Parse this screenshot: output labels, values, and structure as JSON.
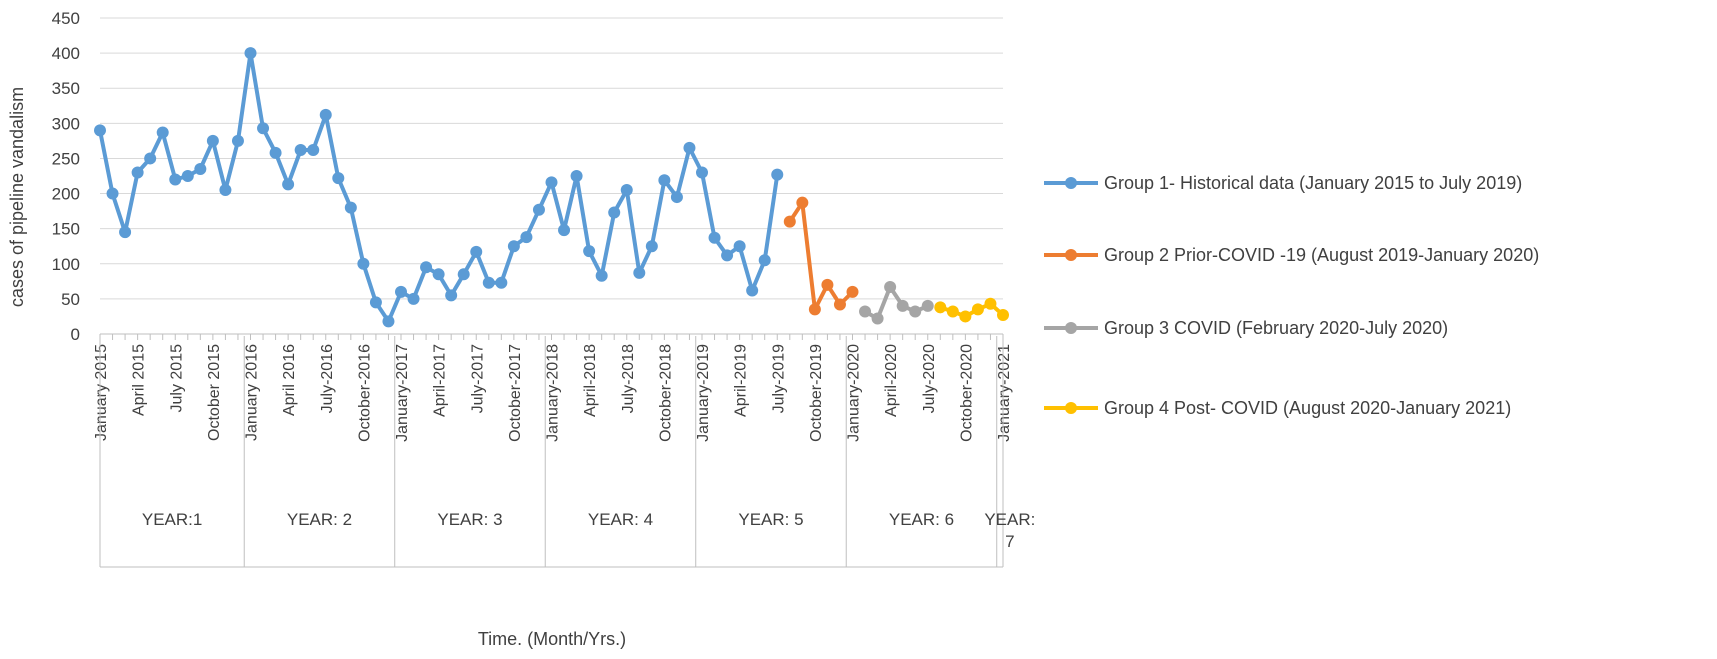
{
  "chart_data": {
    "type": "line",
    "title": "",
    "xlabel": "Time. (Month/Yrs.)",
    "ylabel": "cases of pipeline vandalism",
    "ylim": [
      0,
      450
    ],
    "yticks": [
      0,
      50,
      100,
      150,
      200,
      250,
      300,
      350,
      400,
      450
    ],
    "grid": true,
    "legend_position": "right",
    "month_count": 73,
    "x_tick_labels": [
      {
        "index": 0,
        "label": "January 2015"
      },
      {
        "index": 3,
        "label": "April 2015"
      },
      {
        "index": 6,
        "label": "July 2015"
      },
      {
        "index": 9,
        "label": "October 2015"
      },
      {
        "index": 12,
        "label": "January 2016"
      },
      {
        "index": 15,
        "label": "April 2016"
      },
      {
        "index": 18,
        "label": "July-2016"
      },
      {
        "index": 21,
        "label": "October-2016"
      },
      {
        "index": 24,
        "label": "January-2017"
      },
      {
        "index": 27,
        "label": "April-2017"
      },
      {
        "index": 30,
        "label": "July-2017"
      },
      {
        "index": 33,
        "label": "October-2017"
      },
      {
        "index": 36,
        "label": "January-2018"
      },
      {
        "index": 39,
        "label": "April-2018"
      },
      {
        "index": 42,
        "label": "July-2018"
      },
      {
        "index": 45,
        "label": "October-2018"
      },
      {
        "index": 48,
        "label": "January-2019"
      },
      {
        "index": 51,
        "label": "April-2019"
      },
      {
        "index": 54,
        "label": "July-2019"
      },
      {
        "index": 57,
        "label": "October-2019"
      },
      {
        "index": 60,
        "label": "January-2020"
      },
      {
        "index": 63,
        "label": "April-2020"
      },
      {
        "index": 66,
        "label": "July-2020"
      },
      {
        "index": 69,
        "label": "October-2020"
      },
      {
        "index": 72,
        "label": "January-2021"
      }
    ],
    "year_groups": [
      {
        "label": "YEAR:1",
        "start": 0,
        "end": 11
      },
      {
        "label": "YEAR: 2",
        "start": 12,
        "end": 23
      },
      {
        "label": "YEAR: 3",
        "start": 24,
        "end": 35
      },
      {
        "label": "YEAR: 4",
        "start": 36,
        "end": 47
      },
      {
        "label": "YEAR: 5",
        "start": 48,
        "end": 59
      },
      {
        "label": "YEAR: 6",
        "start": 60,
        "end": 71
      },
      {
        "label": "YEAR:\n7",
        "start": 72,
        "end": 72
      }
    ],
    "series": [
      {
        "name": "Group 1- Historical data (January 2015 to July 2019)",
        "color": "#5B9BD5",
        "start_index": 0,
        "values": [
          290,
          200,
          145,
          230,
          250,
          287,
          220,
          225,
          235,
          275,
          205,
          275,
          400,
          293,
          258,
          213,
          262,
          262,
          312,
          222,
          180,
          100,
          45,
          18,
          60,
          50,
          95,
          85,
          55,
          85,
          117,
          73,
          73,
          125,
          138,
          177,
          216,
          148,
          225,
          118,
          83,
          173,
          205,
          87,
          125,
          219,
          195,
          265,
          230,
          137,
          112,
          125,
          62,
          105,
          227
        ]
      },
      {
        "name": "Group 2 Prior-COVID -19 (August 2019-January 2020)",
        "color": "#ED7D31",
        "start_index": 55,
        "values": [
          160,
          187,
          35,
          70,
          42,
          60
        ]
      },
      {
        "name": "Group 3 COVID (February 2020-July 2020)",
        "color": "#A5A5A5",
        "start_index": 61,
        "values": [
          32,
          22,
          67,
          40,
          32,
          40
        ]
      },
      {
        "name": "Group 4 Post- COVID (August 2020-January 2021)",
        "color": "#FFC000",
        "start_index": 67,
        "values": [
          38,
          32,
          25,
          35,
          43,
          27
        ]
      }
    ]
  }
}
